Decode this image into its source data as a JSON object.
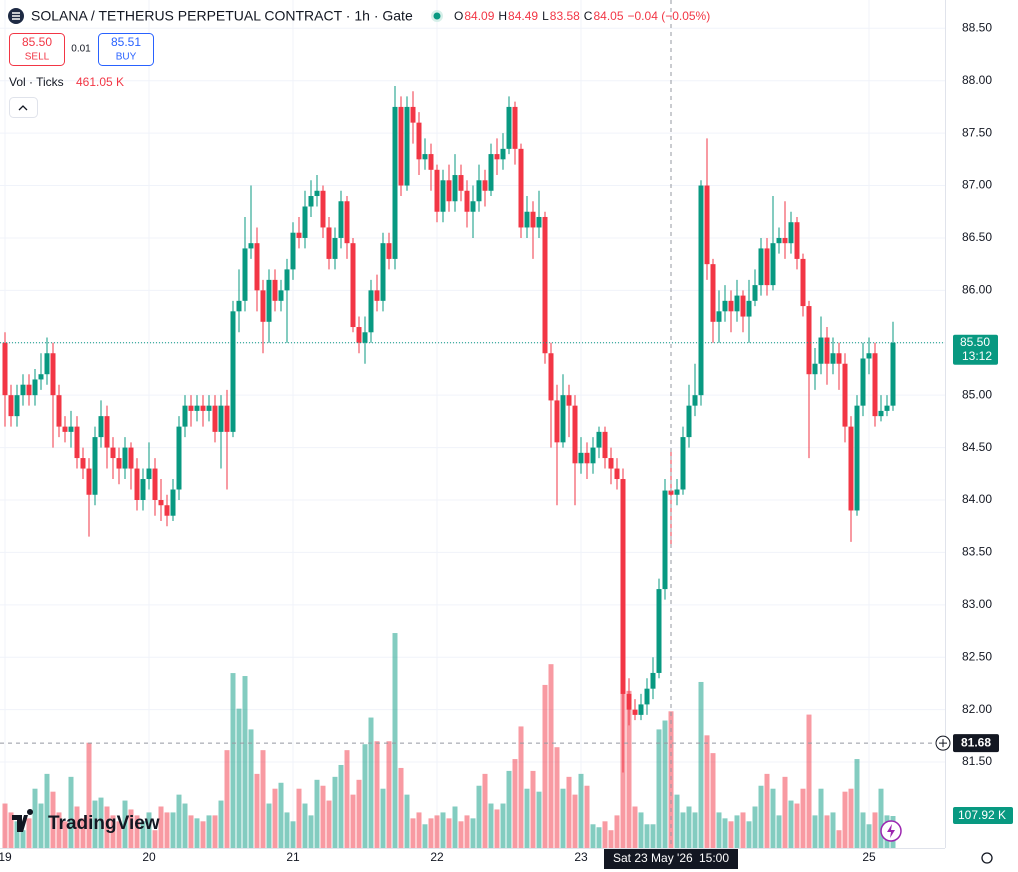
{
  "chart_data": {
    "type": "candlestick",
    "title": "SOLANA / TETHERUS PERPETUAL CONTRACT · 1h · Gate",
    "ohlc_letters": [
      "O",
      "H",
      "L",
      "C"
    ],
    "change": "−0.04 (−0.05%)",
    "bid": {
      "value": 85.5,
      "label": "85.50"
    },
    "sell": "SELL",
    "spread": 0.01,
    "ask": 85.51,
    "buy": "BUY",
    "volume_legend": "Vol · Ticks",
    "logo": "TradingView",
    "up_color": "#089981",
    "down_color": "#f23645",
    "volume_up_color": "rgba(8,153,129,0.5)",
    "volume_down_color": "rgba(242,54,69,0.5)",
    "ylim": [
      80.68,
      88.77
    ],
    "yticks": [
      {
        "value": 88.5,
        "label": "88.50"
      },
      {
        "value": 88,
        "label": "88.00"
      },
      {
        "value": 87.5,
        "label": "87.50"
      },
      {
        "value": 87,
        "label": "87.00"
      },
      {
        "value": 86.5,
        "label": "86.50"
      },
      {
        "value": 86,
        "label": "86.00"
      },
      {
        "value": 85.5,
        "label": "85.50"
      },
      {
        "value": 85,
        "label": "85.00"
      },
      {
        "value": 84.5,
        "label": "84.50"
      },
      {
        "value": 84,
        "label": "84.00"
      },
      {
        "value": 83.5,
        "label": "83.50"
      },
      {
        "value": 83,
        "label": "83.00"
      },
      {
        "value": 82.5,
        "label": "82.50"
      },
      {
        "value": 82,
        "label": "82.00"
      },
      {
        "value": 81.5,
        "label": "81.50"
      }
    ],
    "vlim": [
      0,
      740
    ],
    "grid": true,
    "last_price": {
      "value": 85.5,
      "label": "85.50"
    },
    "countdown": "13:12",
    "crosshair": {
      "index": 111,
      "date": "Sat 23 May '26",
      "time": "15:00",
      "price": 81.68
    },
    "categories": [
      "19",
      null,
      null,
      null,
      null,
      null,
      null,
      null,
      null,
      null,
      null,
      null,
      null,
      null,
      null,
      null,
      null,
      null,
      null,
      null,
      null,
      null,
      null,
      null,
      "20",
      null,
      null,
      null,
      null,
      null,
      null,
      null,
      null,
      null,
      null,
      null,
      null,
      null,
      null,
      null,
      null,
      null,
      null,
      null,
      null,
      null,
      null,
      null,
      "21",
      null,
      null,
      null,
      null,
      null,
      null,
      null,
      null,
      null,
      null,
      null,
      null,
      null,
      null,
      null,
      null,
      null,
      null,
      null,
      null,
      null,
      null,
      null,
      "22",
      null,
      null,
      null,
      null,
      null,
      null,
      null,
      null,
      null,
      null,
      null,
      null,
      null,
      null,
      null,
      null,
      null,
      null,
      null,
      null,
      null,
      null,
      null,
      "23",
      null,
      null,
      null,
      null,
      null,
      null,
      null,
      null,
      null,
      null,
      null,
      null,
      null,
      null,
      null,
      null,
      null,
      null,
      null,
      null,
      null,
      null,
      null,
      null,
      null,
      null,
      null,
      null,
      null,
      null,
      null,
      null,
      null,
      null,
      null,
      null,
      null,
      null,
      null,
      null,
      null,
      null,
      null,
      null,
      null,
      null,
      null,
      "25",
      null,
      null,
      null,
      null
    ],
    "open": [
      85.5,
      85.0,
      84.8,
      85.0,
      85.1,
      85.0,
      85.15,
      85.2,
      85.4,
      85.0,
      84.7,
      84.65,
      84.7,
      84.4,
      84.3,
      84.05,
      84.6,
      84.8,
      84.5,
      84.4,
      84.3,
      84.5,
      84.3,
      84.0,
      84.2,
      84.3,
      84.0,
      83.95,
      83.85,
      84.1,
      84.7,
      84.9,
      84.85,
      84.9,
      84.85,
      84.9,
      84.65,
      84.9,
      84.65,
      85.8,
      85.9,
      86.4,
      86.45,
      86.0,
      85.7,
      86.1,
      85.9,
      86.0,
      86.2,
      86.55,
      86.5,
      86.8,
      86.9,
      86.95,
      86.6,
      86.3,
      86.5,
      86.85,
      86.45,
      85.65,
      85.5,
      85.6,
      86.0,
      85.9,
      86.45,
      86.3,
      87.75,
      87.0,
      87.75,
      87.6,
      87.25,
      87.3,
      87.15,
      86.75,
      87.05,
      86.85,
      87.1,
      86.95,
      86.75,
      86.85,
      87.05,
      86.95,
      87.3,
      87.25,
      87.35,
      87.75,
      87.35,
      86.6,
      86.75,
      86.6,
      86.7,
      85.4,
      84.95,
      84.55,
      85.0,
      84.9,
      84.35,
      84.45,
      84.35,
      84.5,
      84.65,
      84.4,
      84.3,
      84.2,
      82.15,
      82.0,
      81.95,
      82.05,
      82.2,
      82.35,
      83.15,
      84.09,
      84.05,
      84.1,
      84.6,
      84.9,
      85.0,
      87.0,
      86.25,
      85.7,
      85.8,
      85.9,
      85.8,
      85.95,
      85.75,
      85.9,
      86.05,
      86.4,
      86.05,
      86.45,
      86.5,
      86.45,
      86.65,
      86.3,
      85.85,
      85.2,
      85.3,
      85.55,
      85.3,
      85.4,
      85.3,
      84.7,
      83.9,
      84.9,
      85.35,
      85.4,
      84.8,
      84.85,
      84.9
    ],
    "high": [
      85.6,
      85.1,
      85.1,
      85.2,
      85.2,
      85.25,
      85.4,
      85.55,
      85.5,
      85.1,
      84.8,
      84.85,
      84.8,
      84.5,
      84.4,
      84.7,
      84.95,
      84.9,
      84.6,
      84.5,
      84.6,
      84.55,
      84.4,
      84.3,
      84.55,
      84.4,
      84.2,
      84.05,
      84.2,
      84.8,
      85.0,
      85.0,
      85.0,
      85.0,
      85.0,
      85.0,
      85.0,
      85.05,
      85.9,
      86.2,
      86.7,
      87.0,
      86.6,
      86.1,
      86.2,
      86.2,
      86.1,
      86.3,
      86.65,
      86.7,
      86.95,
      87.05,
      87.1,
      87.0,
      86.7,
      86.6,
      86.95,
      86.9,
      86.5,
      85.75,
      85.75,
      86.1,
      86.15,
      86.55,
      86.55,
      87.95,
      87.85,
      87.85,
      87.9,
      87.7,
      87.45,
      87.4,
      87.2,
      87.15,
      87.2,
      87.3,
      87.2,
      87.05,
      87.0,
      87.2,
      87.15,
      87.4,
      87.45,
      87.5,
      87.85,
      87.8,
      87.4,
      86.9,
      86.85,
      86.95,
      86.75,
      85.5,
      85.1,
      85.2,
      85.1,
      85.0,
      84.6,
      84.55,
      84.6,
      84.7,
      84.7,
      84.5,
      84.4,
      84.3,
      82.3,
      82.1,
      82.15,
      82.3,
      82.5,
      83.25,
      84.2,
      84.49,
      84.2,
      84.7,
      85.1,
      85.3,
      87.05,
      87.45,
      86.3,
      86.0,
      86.05,
      86.0,
      86.1,
      86.0,
      86.1,
      86.2,
      86.5,
      86.5,
      86.9,
      86.6,
      86.85,
      86.75,
      86.7,
      86.35,
      85.9,
      85.45,
      85.75,
      85.65,
      85.55,
      85.5,
      85.4,
      84.8,
      85.0,
      85.5,
      85.55,
      85.5,
      85.0,
      85.0,
      85.7
    ],
    "low": [
      84.7,
      84.7,
      84.7,
      84.9,
      84.9,
      84.9,
      85.05,
      85.1,
      84.5,
      84.6,
      84.55,
      84.5,
      84.3,
      84.2,
      83.65,
      83.95,
      84.5,
      84.3,
      84.2,
      84.15,
      84.2,
      84.1,
      83.9,
      83.9,
      84.1,
      83.85,
      83.8,
      83.75,
      83.8,
      84.0,
      84.6,
      84.7,
      84.75,
      84.7,
      84.75,
      84.55,
      84.3,
      84.1,
      84.6,
      85.6,
      85.8,
      86.3,
      85.8,
      85.4,
      85.5,
      85.8,
      85.8,
      85.5,
      86.1,
      86.4,
      86.4,
      86.7,
      86.8,
      86.5,
      86.2,
      86.2,
      86.4,
      86.3,
      85.6,
      85.4,
      85.3,
      85.5,
      85.8,
      85.8,
      86.2,
      86.2,
      86.9,
      86.95,
      87.4,
      87.1,
      87.15,
      86.95,
      86.65,
      86.65,
      86.75,
      86.75,
      86.85,
      86.6,
      86.5,
      86.75,
      86.8,
      86.9,
      87.1,
      87.15,
      87.3,
      87.2,
      86.5,
      86.5,
      86.3,
      86.5,
      85.3,
      84.5,
      83.95,
      84.5,
      84.6,
      83.95,
      84.25,
      84.2,
      84.25,
      84.4,
      84.3,
      84.15,
      84.1,
      81.4,
      81.85,
      81.9,
      81.9,
      81.95,
      82.1,
      82.3,
      83.05,
      83.58,
      83.95,
      84.05,
      84.5,
      84.8,
      84.9,
      86.1,
      85.5,
      85.5,
      85.7,
      85.6,
      85.7,
      85.6,
      85.5,
      85.85,
      85.95,
      85.95,
      86.0,
      86.35,
      86.3,
      86.35,
      86.2,
      85.75,
      84.4,
      85.05,
      85.2,
      85.1,
      85.2,
      85.05,
      84.55,
      83.6,
      83.85,
      84.8,
      85.2,
      84.7,
      84.75,
      84.8,
      84.85
    ],
    "close": [
      85.0,
      84.8,
      85.0,
      85.1,
      85.0,
      85.15,
      85.2,
      85.4,
      85.0,
      84.7,
      84.65,
      84.7,
      84.4,
      84.3,
      84.05,
      84.6,
      84.8,
      84.5,
      84.4,
      84.3,
      84.5,
      84.3,
      84.0,
      84.2,
      84.3,
      84.0,
      83.95,
      83.85,
      84.1,
      84.7,
      84.9,
      84.85,
      84.9,
      84.85,
      84.9,
      84.65,
      84.9,
      84.65,
      85.8,
      85.9,
      86.4,
      86.45,
      86.0,
      85.7,
      86.1,
      85.9,
      86.0,
      86.2,
      86.55,
      86.5,
      86.8,
      86.9,
      86.95,
      86.6,
      86.3,
      86.5,
      86.85,
      86.45,
      85.65,
      85.5,
      85.6,
      86.0,
      85.9,
      86.45,
      86.3,
      87.75,
      87.0,
      87.75,
      87.6,
      87.25,
      87.3,
      87.15,
      86.75,
      87.05,
      86.85,
      87.1,
      86.95,
      86.75,
      86.85,
      87.05,
      86.95,
      87.3,
      87.25,
      87.35,
      87.75,
      87.35,
      86.6,
      86.75,
      86.6,
      86.7,
      85.4,
      84.95,
      84.55,
      85.0,
      84.9,
      84.35,
      84.45,
      84.35,
      84.5,
      84.65,
      84.4,
      84.3,
      84.2,
      82.15,
      82.0,
      81.95,
      82.05,
      82.2,
      82.35,
      83.15,
      84.09,
      84.05,
      84.1,
      84.6,
      84.9,
      85.0,
      87.0,
      86.25,
      85.7,
      85.8,
      85.9,
      85.8,
      85.95,
      85.75,
      85.9,
      86.05,
      86.4,
      86.05,
      86.45,
      86.5,
      86.45,
      86.65,
      86.3,
      85.85,
      85.2,
      85.3,
      85.55,
      85.3,
      85.4,
      85.3,
      84.7,
      83.9,
      84.9,
      85.35,
      85.4,
      84.8,
      84.85,
      84.9,
      85.5
    ],
    "volume": [
      150,
      120,
      90,
      60,
      100,
      200,
      150,
      250,
      190,
      120,
      90,
      240,
      140,
      100,
      355,
      160,
      170,
      140,
      110,
      90,
      160,
      130,
      110,
      90,
      120,
      60,
      140,
      120,
      120,
      180,
      150,
      110,
      100,
      90,
      110,
      110,
      160,
      330,
      590,
      470,
      580,
      400,
      250,
      330,
      150,
      200,
      220,
      120,
      90,
      200,
      150,
      110,
      230,
      210,
      160,
      240,
      280,
      330,
      180,
      230,
      350,
      440,
      360,
      200,
      360,
      725,
      270,
      180,
      100,
      120,
      80,
      100,
      110,
      120,
      100,
      140,
      90,
      110,
      100,
      210,
      250,
      150,
      130,
      150,
      260,
      300,
      410,
      200,
      260,
      190,
      550,
      620,
      340,
      200,
      240,
      180,
      250,
      210,
      80,
      70,
      90,
      60,
      110,
      560,
      530,
      140,
      120,
      80,
      80,
      400,
      430,
      461.05,
      180,
      120,
      140,
      120,
      560,
      380,
      320,
      120,
      100,
      90,
      110,
      120,
      90,
      140,
      210,
      250,
      200,
      110,
      240,
      160,
      150,
      200,
      450,
      110,
      200,
      110,
      120,
      60,
      190,
      200,
      300,
      120,
      80,
      120,
      200,
      110,
      107.92
    ],
    "volume_labels": [
      null,
      null,
      null,
      null,
      null,
      null,
      null,
      null,
      null,
      null,
      null,
      null,
      null,
      null,
      null,
      null,
      null,
      null,
      null,
      null,
      null,
      null,
      null,
      null,
      null,
      null,
      null,
      null,
      null,
      null,
      null,
      null,
      null,
      null,
      null,
      null,
      null,
      null,
      null,
      null,
      null,
      null,
      null,
      null,
      null,
      null,
      null,
      null,
      null,
      null,
      null,
      null,
      null,
      null,
      null,
      null,
      null,
      null,
      null,
      null,
      null,
      null,
      null,
      null,
      null,
      null,
      null,
      null,
      null,
      null,
      null,
      null,
      null,
      null,
      null,
      null,
      null,
      null,
      null,
      null,
      null,
      null,
      null,
      null,
      null,
      null,
      null,
      null,
      null,
      null,
      null,
      null,
      null,
      null,
      null,
      null,
      null,
      null,
      null,
      null,
      null,
      null,
      null,
      null,
      null,
      null,
      null,
      null,
      null,
      null,
      null,
      "461.05 K",
      null,
      null,
      null,
      null,
      null,
      null,
      null,
      null,
      null,
      null,
      null,
      null,
      null,
      null,
      null,
      null,
      null,
      null,
      null,
      null,
      null,
      null,
      null,
      null,
      null,
      null,
      null,
      null,
      null,
      null,
      null,
      null,
      null,
      null,
      null,
      null,
      "107.92 K"
    ]
  }
}
